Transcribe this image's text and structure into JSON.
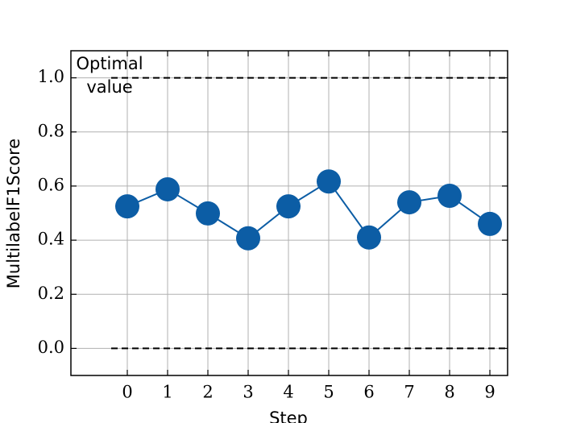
{
  "chart_data": {
    "type": "line",
    "x_label": "Step",
    "y_label": "MultilabelF1Score",
    "annotation": [
      "Optimal",
      "value"
    ],
    "x": [
      0,
      1,
      2,
      3,
      4,
      5,
      6,
      7,
      8,
      9
    ],
    "series": [
      {
        "color": "#0c5da5",
        "values": [
          0.525,
          0.588,
          0.499,
          0.407,
          0.525,
          0.617,
          0.41,
          0.54,
          0.564,
          0.46
        ]
      }
    ],
    "reference_lines": [
      {
        "y": 1.0,
        "xmin": -0.4
      },
      {
        "y": 0.0,
        "xmin": -0.4
      }
    ],
    "xlim": [
      -1.4,
      9.44
    ],
    "ylim": [
      -0.1,
      1.1
    ],
    "xticks": [
      0,
      1,
      2,
      3,
      4,
      5,
      6,
      7,
      8,
      9
    ],
    "yticks": [
      {
        "value": 0,
        "label": "0.0"
      },
      {
        "value": 0.2,
        "label": "0.2"
      },
      {
        "value": 0.4,
        "label": "0.4"
      },
      {
        "value": 0.6,
        "label": "0.6"
      },
      {
        "value": 0.8,
        "label": "0.8"
      },
      {
        "value": 1,
        "label": "1.0"
      }
    ],
    "grid": true
  }
}
